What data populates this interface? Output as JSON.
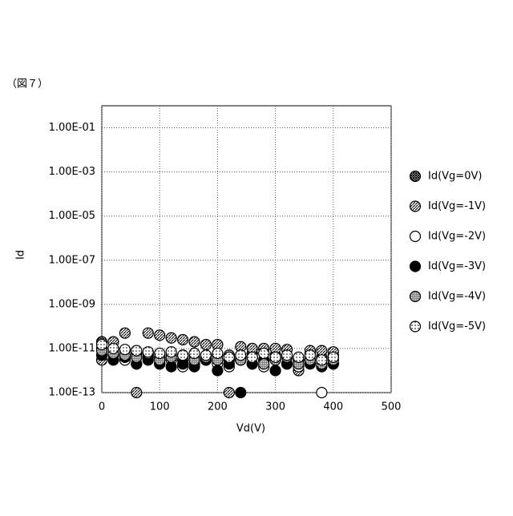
{
  "chart_data": {
    "type": "scatter",
    "figure_label": "（図７）",
    "x_label": "Vd(V)",
    "y_label": "Id",
    "log_y": true,
    "grid": true,
    "legend": "right",
    "xlim": [
      0,
      500
    ],
    "xticks": [
      0,
      100,
      200,
      300,
      400,
      500
    ],
    "ylim": [
      1e-13,
      1
    ],
    "yticks": [
      {
        "value": 0.1,
        "label": "1.00E-01"
      },
      {
        "value": 0.001,
        "label": "1.00E-03"
      },
      {
        "value": 1e-05,
        "label": "1.00E-05"
      },
      {
        "value": 1e-07,
        "label": "1.00E-07"
      },
      {
        "value": 1e-09,
        "label": "1.00E-09"
      },
      {
        "value": 1e-11,
        "label": "1.00E-11"
      },
      {
        "value": 1e-13,
        "label": "1.00E-13"
      }
    ],
    "x": [
      0,
      20,
      40,
      60,
      80,
      100,
      120,
      140,
      160,
      180,
      200,
      220,
      240,
      260,
      280,
      300,
      320,
      340,
      360,
      380,
      400
    ],
    "series": [
      {
        "name": "Id(Vg=0V)",
        "color": "#000000",
        "fill": "crosshatch",
        "values": [
          2e-11,
          1e-11,
          8e-12,
          6e-12,
          5e-12,
          4e-12,
          5e-12,
          3e-12,
          4e-12,
          3e-12,
          5e-12,
          3e-12,
          4e-12,
          6e-12,
          3e-12,
          5e-12,
          4e-12,
          3e-12,
          6e-12,
          4e-12,
          5e-12
        ]
      },
      {
        "name": "Id(Vg=-1V)",
        "color": "#000000",
        "fill": "hatch",
        "values": [
          3e-12,
          2e-11,
          5e-11,
          1e-13,
          5e-11,
          4e-11,
          3e-11,
          2.5e-11,
          2e-11,
          1.5e-11,
          1.5e-11,
          1e-13,
          1.2e-11,
          1e-11,
          1e-11,
          1e-11,
          9e-12,
          1e-12,
          8e-12,
          8e-12,
          7e-12
        ]
      },
      {
        "name": "Id(Vg=-2V)",
        "color": "#000000",
        "fill": "white",
        "values": [
          1e-11,
          5e-12,
          3e-12,
          2e-12,
          4e-12,
          2e-12,
          3e-12,
          1.5e-12,
          2e-12,
          3e-12,
          2e-12,
          1.5e-12,
          3e-12,
          2e-12,
          1.5e-12,
          4e-12,
          2e-12,
          1.5e-12,
          3e-12,
          1e-13,
          2e-12
        ]
      },
      {
        "name": "Id(Vg=-3V)",
        "color": "#000000",
        "fill": "black",
        "values": [
          5e-12,
          3e-12,
          4e-12,
          2e-12,
          3e-12,
          2e-12,
          1.5e-12,
          2e-12,
          1.5e-12,
          3e-12,
          1e-12,
          2e-12,
          1e-13,
          2e-12,
          3e-12,
          1e-12,
          2e-12,
          3e-12,
          2e-12,
          1.5e-12,
          2e-12
        ]
      },
      {
        "name": "Id(Vg=-4V)",
        "color": "#000000",
        "fill": "dots-gray",
        "values": [
          8e-12,
          6e-12,
          5e-12,
          4e-12,
          6e-12,
          3e-12,
          4e-12,
          5e-12,
          3e-12,
          4e-12,
          3e-12,
          5e-12,
          3e-12,
          4e-12,
          2e-12,
          3e-12,
          4e-12,
          2e-12,
          3e-12,
          2e-12,
          3e-12
        ]
      },
      {
        "name": "Id(Vg=-5V)",
        "color": "#000000",
        "fill": "dots-white",
        "values": [
          1.5e-11,
          1e-11,
          9e-12,
          8e-12,
          7e-12,
          6e-12,
          7e-12,
          5e-12,
          6e-12,
          5e-12,
          6e-12,
          4e-12,
          5e-12,
          4e-12,
          6e-12,
          4e-12,
          5e-12,
          4e-12,
          5e-12,
          3e-12,
          4e-12
        ]
      }
    ]
  }
}
